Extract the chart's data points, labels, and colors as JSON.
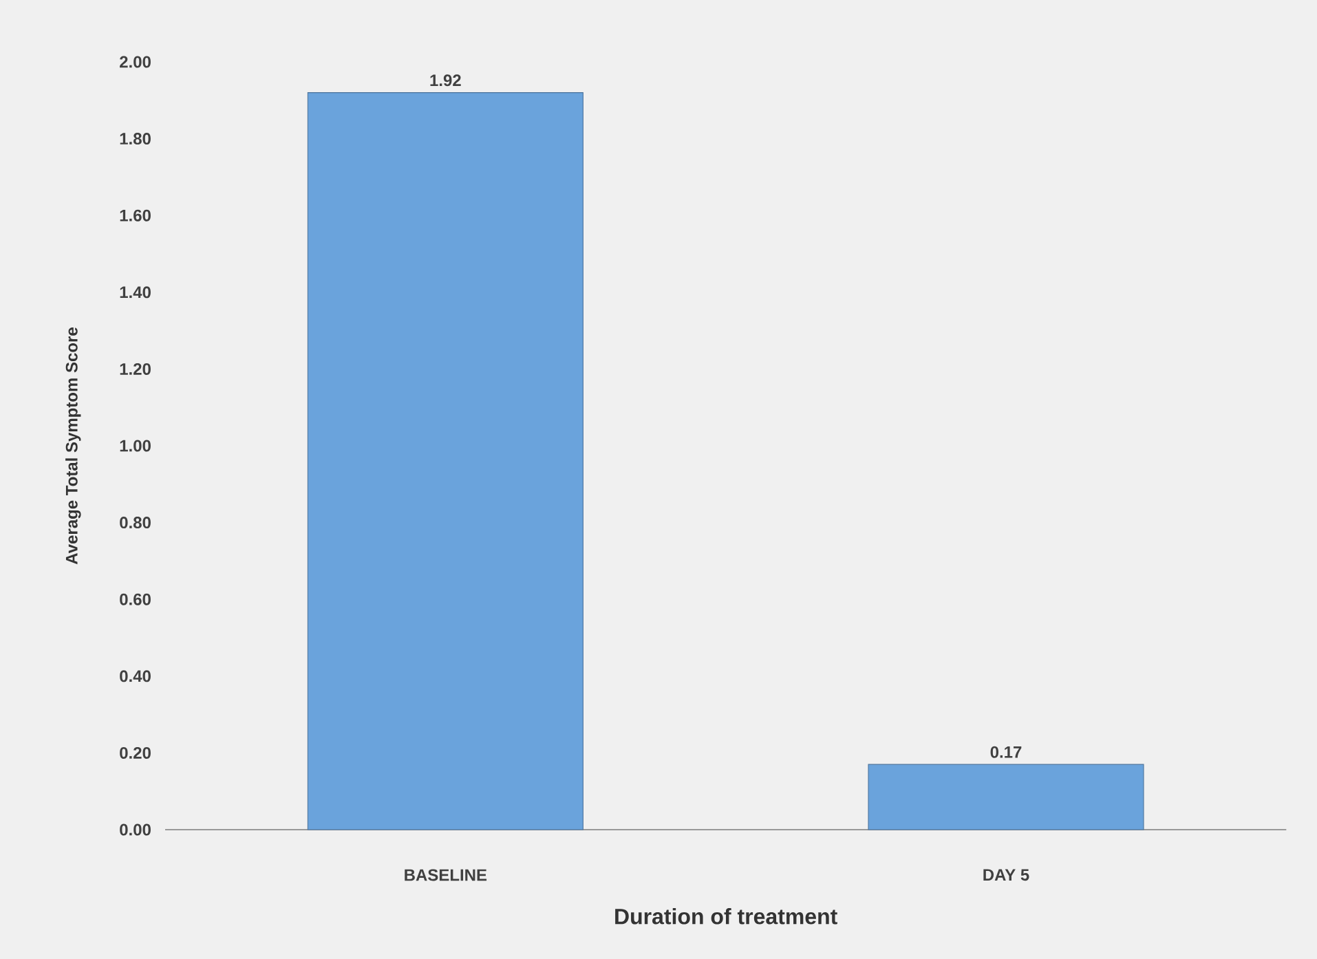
{
  "chart_data": {
    "type": "bar",
    "xlabel": "Duration of treatment",
    "ylabel": "Average Total Symptom Score",
    "categories": [
      "BASELINE",
      "DAY 5"
    ],
    "values": [
      1.92,
      0.17
    ],
    "color": "#6aa3dc",
    "ylim": [
      0,
      2
    ],
    "yticks": [
      {
        "value": 0,
        "label": "0.00"
      },
      {
        "value": 0.2,
        "label": "0.20"
      },
      {
        "value": 0.4,
        "label": "0.40"
      },
      {
        "value": 0.6,
        "label": "0.60"
      },
      {
        "value": 0.8,
        "label": "0.80"
      },
      {
        "value": 1,
        "label": "1.00"
      },
      {
        "value": 1.2,
        "label": "1.20"
      },
      {
        "value": 1.4,
        "label": "1.40"
      },
      {
        "value": 1.6,
        "label": "1.60"
      },
      {
        "value": 1.8,
        "label": "1.80"
      },
      {
        "value": 2,
        "label": "2.00"
      }
    ],
    "data_labels": true
  }
}
